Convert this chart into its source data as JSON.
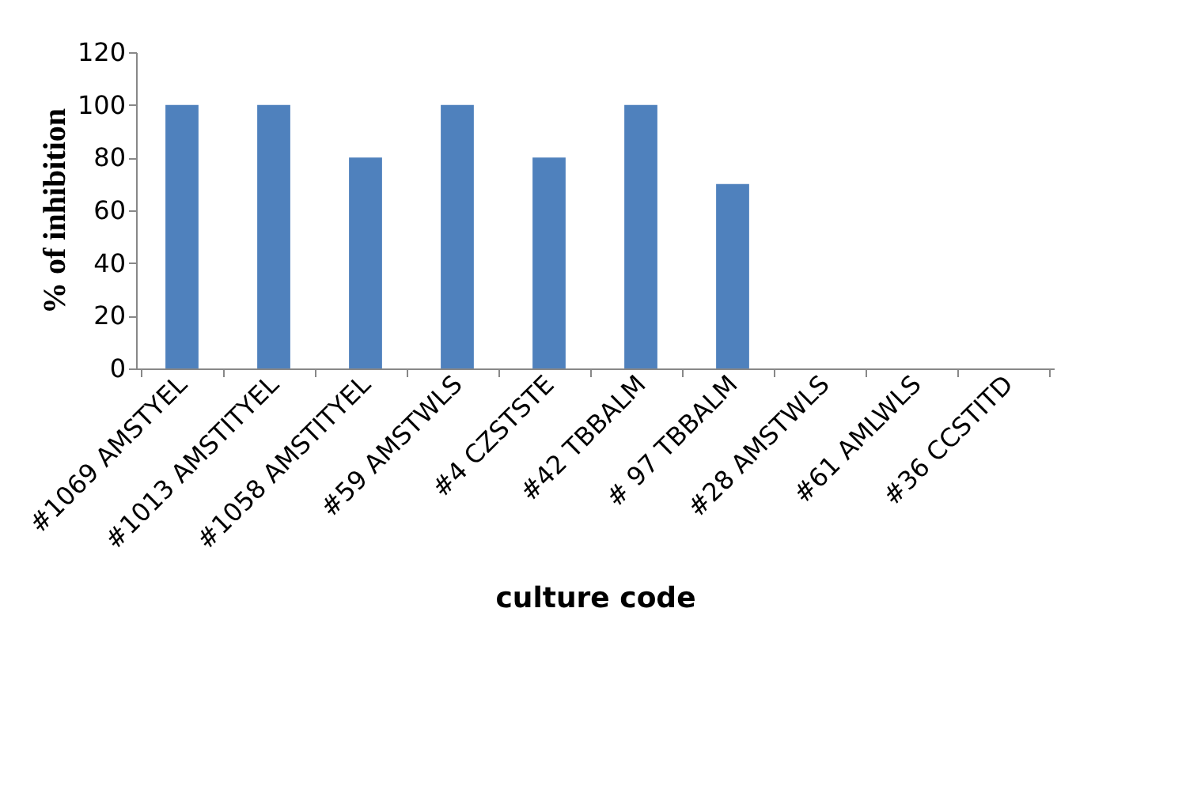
{
  "chart_data": {
    "type": "bar",
    "xlabel": "culture code",
    "ylabel": "% of inhibition",
    "categories": [
      "#1069 AMSTYEL",
      "#1013 AMSTITYEL",
      "#1058 AMSTITYEL",
      "#59 AMSTWLS",
      "#4 CZSTSTE",
      "#42 TBBALM",
      "# 97 TBBALM",
      "#28 AMSTWLS",
      "#61 AMLWLS",
      "#36 CCSTITD"
    ],
    "values": [
      100,
      100,
      80,
      100,
      80,
      100,
      70,
      0,
      0,
      0
    ],
    "color": "#4f81bd",
    "ylim": [
      0,
      120
    ],
    "yticks": [
      0,
      20,
      40,
      60,
      80,
      100,
      120
    ],
    "grid": false
  }
}
